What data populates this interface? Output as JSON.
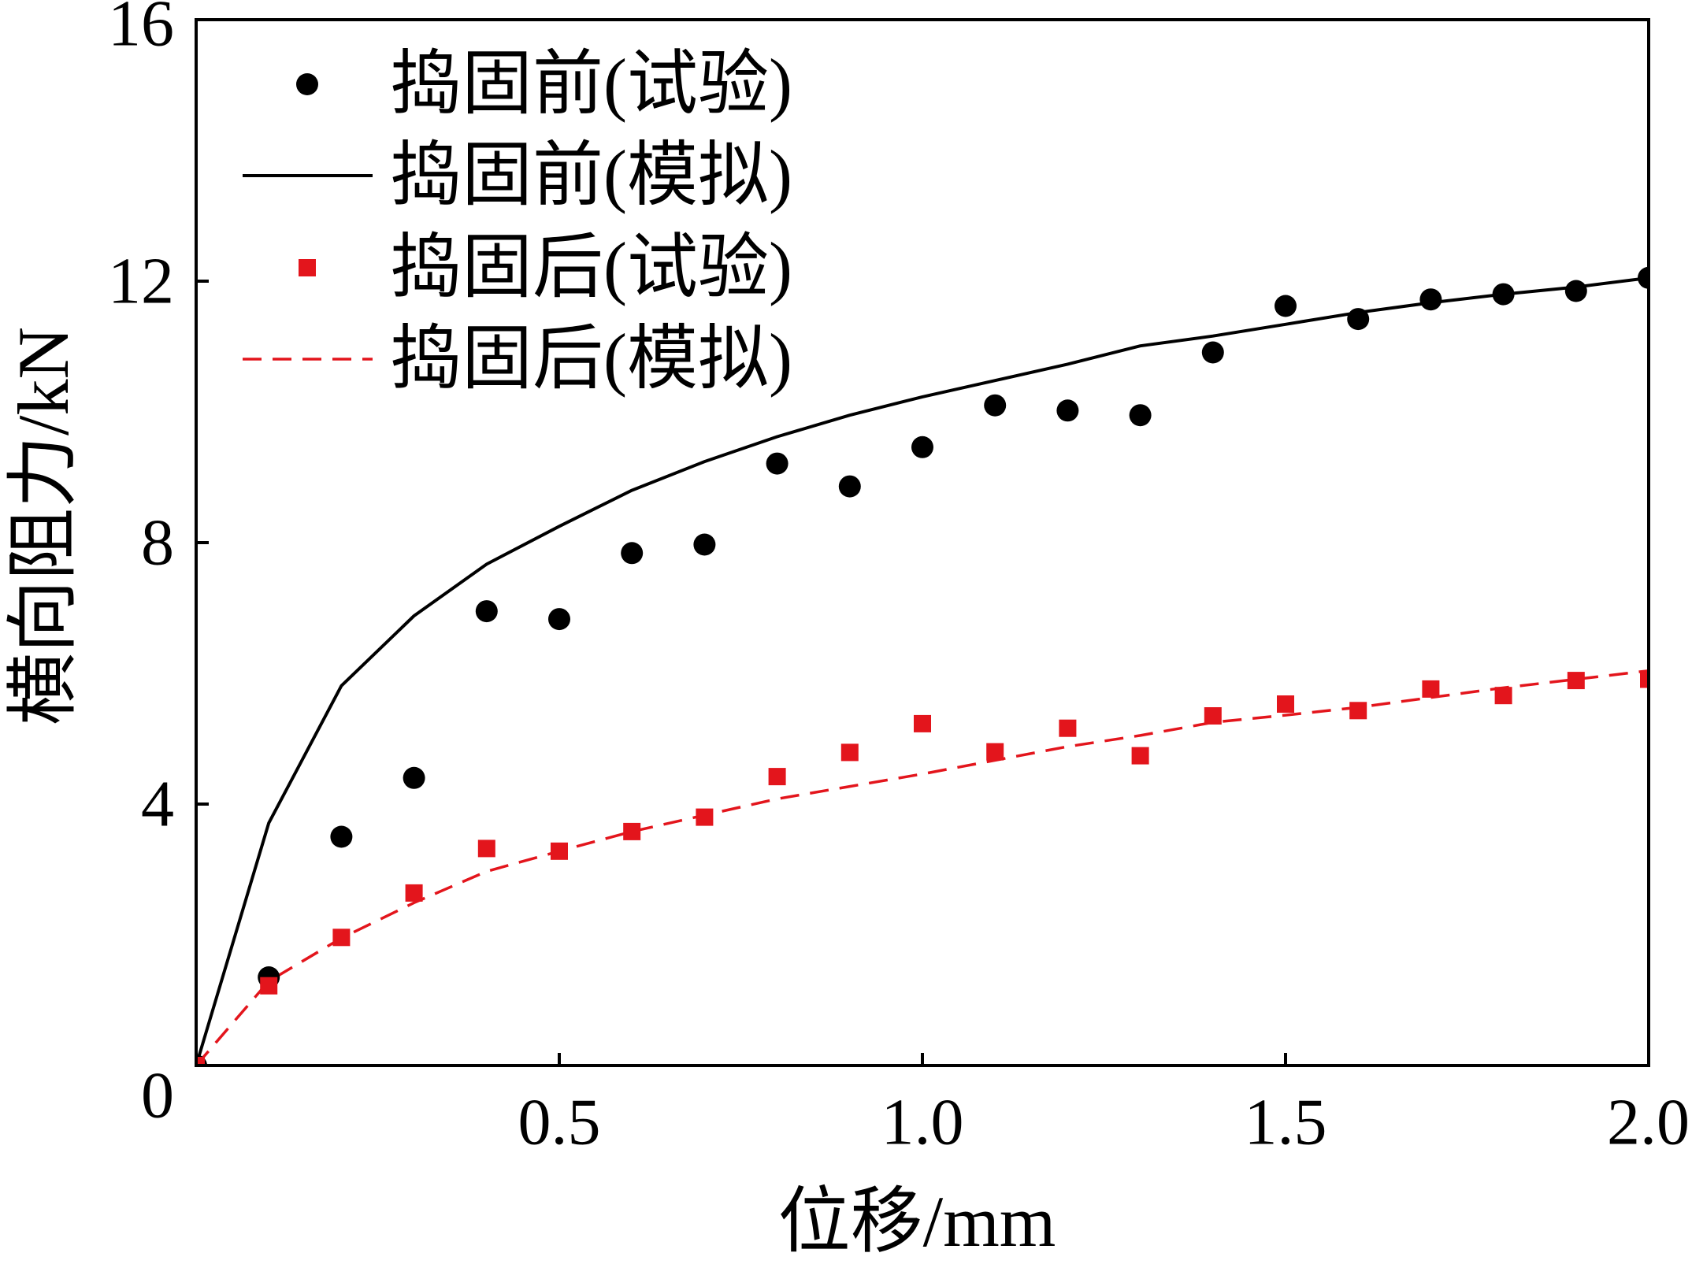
{
  "chart_data": {
    "type": "line",
    "xlabel": "位移/mm",
    "ylabel": "横向阻力/kN",
    "xlim": [
      0,
      2.0
    ],
    "ylim": [
      0,
      16
    ],
    "xticks": [
      {
        "value": 0.5,
        "label": "0.5"
      },
      {
        "value": 1.0,
        "label": "1.0"
      },
      {
        "value": 1.5,
        "label": "1.5"
      },
      {
        "value": 2.0,
        "label": "2.0"
      }
    ],
    "yticks": [
      {
        "value": 0,
        "label": "0"
      },
      {
        "value": 4,
        "label": "4"
      },
      {
        "value": 8,
        "label": "8"
      },
      {
        "value": 12,
        "label": "12"
      },
      {
        "value": 16,
        "label": "16"
      }
    ],
    "grid": false,
    "legend_position": "top-left",
    "x": [
      0,
      0.1,
      0.2,
      0.3,
      0.4,
      0.5,
      0.6,
      0.7,
      0.8,
      0.9,
      1.0,
      1.1,
      1.2,
      1.3,
      1.4,
      1.5,
      1.6,
      1.7,
      1.8,
      1.9,
      2.0
    ],
    "series": [
      {
        "name": "捣固前(试验)",
        "marker": "circle",
        "line": "none",
        "color": "#000000",
        "values": [
          0,
          1.35,
          3.5,
          4.4,
          6.95,
          6.83,
          7.84,
          7.97,
          9.21,
          8.86,
          9.46,
          10.1,
          10.02,
          9.95,
          10.91,
          11.62,
          11.42,
          11.72,
          11.8,
          11.85,
          12.05
        ]
      },
      {
        "name": "捣固前(模拟)",
        "marker": "none",
        "line": "solid",
        "color": "#000000",
        "values": [
          0,
          3.71,
          5.81,
          6.88,
          7.67,
          8.25,
          8.8,
          9.24,
          9.62,
          9.95,
          10.23,
          10.48,
          10.73,
          11.01,
          11.16,
          11.34,
          11.52,
          11.67,
          11.8,
          11.91,
          12.05
        ]
      },
      {
        "name": "捣固后(试验)",
        "marker": "square",
        "line": "none",
        "color": "#e3151c",
        "values": [
          0,
          1.22,
          1.96,
          2.64,
          3.32,
          3.28,
          3.58,
          3.8,
          4.42,
          4.79,
          5.23,
          4.8,
          5.16,
          4.74,
          5.35,
          5.53,
          5.43,
          5.76,
          5.66,
          5.89,
          5.91
        ]
      },
      {
        "name": "捣固后(模拟)",
        "marker": "none",
        "line": "dashed",
        "color": "#e3151c",
        "values": [
          0,
          1.29,
          1.95,
          2.49,
          2.97,
          3.28,
          3.58,
          3.83,
          4.08,
          4.27,
          4.46,
          4.67,
          4.88,
          5.05,
          5.25,
          5.36,
          5.48,
          5.63,
          5.78,
          5.91,
          6.04
        ]
      }
    ]
  }
}
